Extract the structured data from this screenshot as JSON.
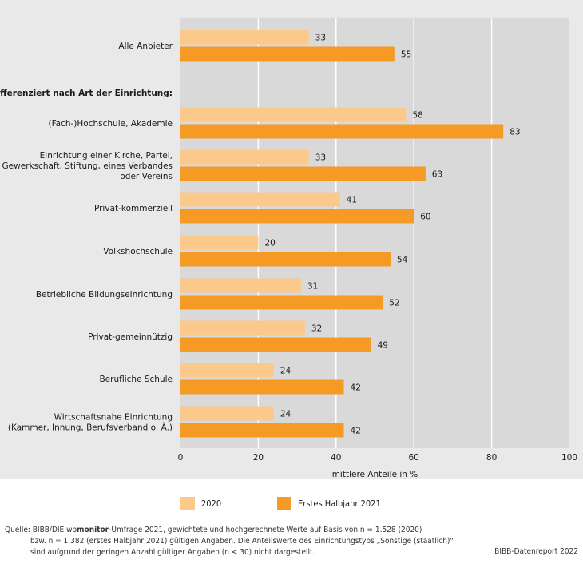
{
  "chart_data": {
    "type": "bar",
    "orientation": "horizontal",
    "categories": [
      [
        "Alle Anbieter"
      ],
      [
        "(Fach-)Hochschule, Akademie"
      ],
      [
        "Einrichtung einer Kirche, Partei,",
        "Gewerkschaft, Stiftung, eines Verbandes",
        "oder Vereins"
      ],
      [
        "Privat-kommerziell"
      ],
      [
        "Volkshochschule"
      ],
      [
        "Betriebliche Bildungseinrichtung"
      ],
      [
        "Privat-gemeinnützig"
      ],
      [
        "Berufliche Schule"
      ],
      [
        "Wirtschaftsnahe Einrichtung",
        "(Kammer, Innung, Berufsverband o. Ä.)"
      ]
    ],
    "section_label": "Differenziert nach Art der Einrichtung:",
    "series": [
      {
        "name": "2020",
        "color": "#fcc98d",
        "values": [
          33,
          58,
          33,
          41,
          20,
          31,
          32,
          24,
          24
        ]
      },
      {
        "name": "Erstes Halbjahr 2021",
        "color": "#f59b25",
        "values": [
          55,
          83,
          63,
          60,
          54,
          52,
          49,
          42,
          42
        ]
      }
    ],
    "xlim": [
      0,
      100
    ],
    "xticks": [
      0,
      20,
      40,
      60,
      80,
      100
    ],
    "xlabel": "mittlere Anteile in %",
    "legend_position": "bottom"
  },
  "footer": {
    "source_prefix": "Quelle:  BIBB/DIE wb",
    "source_bold": "monitor",
    "source_rest": "-Umfrage 2021, gewichtete und hochgerechnete Werte auf Basis von n = 1.528 (2020)",
    "line2": "bzw. n = 1.382 (erstes Halbjahr 2021) gültigen Angaben. Die Anteilswerte des Einrichtungstyps „Sonstige (staatlich)“",
    "line3": "sind aufgrund der geringen Anzahl gültiger Angaben (n < 30) nicht dargestellt.",
    "credit": "BIBB-Datenreport 2022"
  },
  "colors": {
    "panel_bg": "#e9e9e9",
    "plot_bg": "#d9d9d9",
    "light_bar": "#fcc98d",
    "dark_bar": "#f59b25"
  }
}
